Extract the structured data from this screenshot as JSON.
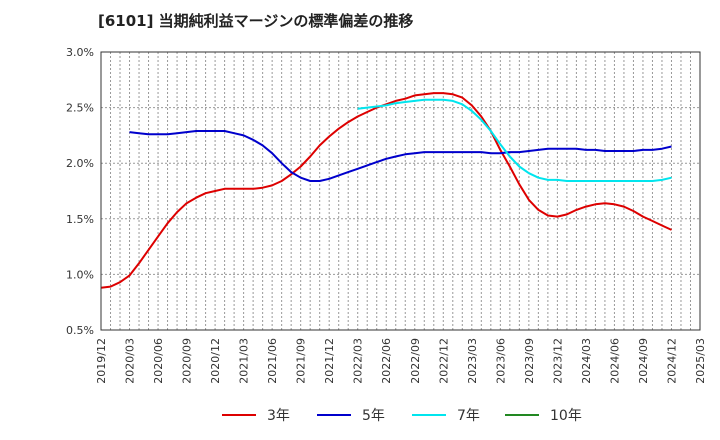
{
  "title": "[6101]  当期純利益マージンの標準偏差の推移",
  "chart_data": {
    "type": "line",
    "title": "[6101]  当期純利益マージンの標準偏差の推移",
    "xlabel": "",
    "ylabel": "",
    "x_ticks": [
      "2019/12",
      "2020/03",
      "2020/06",
      "2020/09",
      "2020/12",
      "2021/03",
      "2021/06",
      "2021/09",
      "2021/12",
      "2022/03",
      "2022/06",
      "2022/09",
      "2022/12",
      "2023/03",
      "2023/06",
      "2023/09",
      "2023/12",
      "2024/03",
      "2024/06",
      "2024/09",
      "2024/12",
      "2025/03"
    ],
    "y_ticks": [
      "0.5%",
      "1.0%",
      "1.5%",
      "2.0%",
      "2.5%",
      "3.0%"
    ],
    "ylim": [
      0.5,
      3.0
    ],
    "grid": true,
    "legend": "bottom",
    "series": [
      {
        "name": "3年",
        "color": "#dd0000",
        "points": [
          [
            "2019/12",
            0.88
          ],
          [
            "2020/01",
            0.89
          ],
          [
            "2020/02",
            0.93
          ],
          [
            "2020/03",
            0.99
          ],
          [
            "2020/04",
            1.1
          ],
          [
            "2020/05",
            1.22
          ],
          [
            "2020/06",
            1.34
          ],
          [
            "2020/07",
            1.46
          ],
          [
            "2020/08",
            1.56
          ],
          [
            "2020/09",
            1.64
          ],
          [
            "2020/10",
            1.69
          ],
          [
            "2020/11",
            1.73
          ],
          [
            "2020/12",
            1.75
          ],
          [
            "2021/01",
            1.77
          ],
          [
            "2021/02",
            1.77
          ],
          [
            "2021/03",
            1.77
          ],
          [
            "2021/04",
            1.77
          ],
          [
            "2021/05",
            1.78
          ],
          [
            "2021/06",
            1.8
          ],
          [
            "2021/07",
            1.84
          ],
          [
            "2021/08",
            1.9
          ],
          [
            "2021/09",
            1.97
          ],
          [
            "2021/10",
            2.06
          ],
          [
            "2021/11",
            2.16
          ],
          [
            "2021/12",
            2.24
          ],
          [
            "2022/01",
            2.31
          ],
          [
            "2022/02",
            2.37
          ],
          [
            "2022/03",
            2.42
          ],
          [
            "2022/04",
            2.46
          ],
          [
            "2022/05",
            2.5
          ],
          [
            "2022/06",
            2.53
          ],
          [
            "2022/07",
            2.56
          ],
          [
            "2022/08",
            2.58
          ],
          [
            "2022/09",
            2.61
          ],
          [
            "2022/10",
            2.62
          ],
          [
            "2022/11",
            2.63
          ],
          [
            "2022/12",
            2.63
          ],
          [
            "2023/01",
            2.62
          ],
          [
            "2023/02",
            2.59
          ],
          [
            "2023/03",
            2.52
          ],
          [
            "2023/04",
            2.42
          ],
          [
            "2023/05",
            2.29
          ],
          [
            "2023/06",
            2.12
          ],
          [
            "2023/07",
            1.97
          ],
          [
            "2023/08",
            1.81
          ],
          [
            "2023/09",
            1.67
          ],
          [
            "2023/10",
            1.58
          ],
          [
            "2023/11",
            1.53
          ],
          [
            "2023/12",
            1.52
          ],
          [
            "2024/01",
            1.54
          ],
          [
            "2024/02",
            1.58
          ],
          [
            "2024/03",
            1.61
          ],
          [
            "2024/04",
            1.63
          ],
          [
            "2024/05",
            1.64
          ],
          [
            "2024/06",
            1.63
          ],
          [
            "2024/07",
            1.61
          ],
          [
            "2024/08",
            1.57
          ],
          [
            "2024/09",
            1.52
          ],
          [
            "2024/10",
            1.48
          ],
          [
            "2024/11",
            1.44
          ],
          [
            "2024/12",
            1.4
          ]
        ]
      },
      {
        "name": "5年",
        "color": "#0000cc",
        "points": [
          [
            "2020/03",
            2.28
          ],
          [
            "2020/04",
            2.27
          ],
          [
            "2020/05",
            2.26
          ],
          [
            "2020/06",
            2.26
          ],
          [
            "2020/07",
            2.26
          ],
          [
            "2020/08",
            2.27
          ],
          [
            "2020/09",
            2.28
          ],
          [
            "2020/10",
            2.29
          ],
          [
            "2020/11",
            2.29
          ],
          [
            "2020/12",
            2.29
          ],
          [
            "2021/01",
            2.29
          ],
          [
            "2021/02",
            2.27
          ],
          [
            "2021/03",
            2.25
          ],
          [
            "2021/04",
            2.21
          ],
          [
            "2021/05",
            2.16
          ],
          [
            "2021/06",
            2.09
          ],
          [
            "2021/07",
            2.0
          ],
          [
            "2021/08",
            1.92
          ],
          [
            "2021/09",
            1.87
          ],
          [
            "2021/10",
            1.84
          ],
          [
            "2021/11",
            1.84
          ],
          [
            "2021/12",
            1.86
          ],
          [
            "2022/01",
            1.89
          ],
          [
            "2022/02",
            1.92
          ],
          [
            "2022/03",
            1.95
          ],
          [
            "2022/04",
            1.98
          ],
          [
            "2022/05",
            2.01
          ],
          [
            "2022/06",
            2.04
          ],
          [
            "2022/07",
            2.06
          ],
          [
            "2022/08",
            2.08
          ],
          [
            "2022/09",
            2.09
          ],
          [
            "2022/10",
            2.1
          ],
          [
            "2022/11",
            2.1
          ],
          [
            "2022/12",
            2.1
          ],
          [
            "2023/01",
            2.1
          ],
          [
            "2023/02",
            2.1
          ],
          [
            "2023/03",
            2.1
          ],
          [
            "2023/04",
            2.1
          ],
          [
            "2023/05",
            2.09
          ],
          [
            "2023/06",
            2.09
          ],
          [
            "2023/07",
            2.1
          ],
          [
            "2023/08",
            2.1
          ],
          [
            "2023/09",
            2.11
          ],
          [
            "2023/10",
            2.12
          ],
          [
            "2023/11",
            2.13
          ],
          [
            "2023/12",
            2.13
          ],
          [
            "2024/01",
            2.13
          ],
          [
            "2024/02",
            2.13
          ],
          [
            "2024/03",
            2.12
          ],
          [
            "2024/04",
            2.12
          ],
          [
            "2024/05",
            2.11
          ],
          [
            "2024/06",
            2.11
          ],
          [
            "2024/07",
            2.11
          ],
          [
            "2024/08",
            2.11
          ],
          [
            "2024/09",
            2.12
          ],
          [
            "2024/10",
            2.12
          ],
          [
            "2024/11",
            2.13
          ],
          [
            "2024/12",
            2.15
          ]
        ]
      },
      {
        "name": "7年",
        "color": "#00e5ee",
        "points": [
          [
            "2022/03",
            2.49
          ],
          [
            "2022/04",
            2.5
          ],
          [
            "2022/05",
            2.51
          ],
          [
            "2022/06",
            2.52
          ],
          [
            "2022/07",
            2.54
          ],
          [
            "2022/08",
            2.55
          ],
          [
            "2022/09",
            2.56
          ],
          [
            "2022/10",
            2.57
          ],
          [
            "2022/11",
            2.57
          ],
          [
            "2022/12",
            2.57
          ],
          [
            "2023/01",
            2.56
          ],
          [
            "2023/02",
            2.53
          ],
          [
            "2023/03",
            2.47
          ],
          [
            "2023/04",
            2.39
          ],
          [
            "2023/05",
            2.29
          ],
          [
            "2023/06",
            2.17
          ],
          [
            "2023/07",
            2.06
          ],
          [
            "2023/08",
            1.97
          ],
          [
            "2023/09",
            1.91
          ],
          [
            "2023/10",
            1.87
          ],
          [
            "2023/11",
            1.85
          ],
          [
            "2023/12",
            1.85
          ],
          [
            "2024/01",
            1.84
          ],
          [
            "2024/02",
            1.84
          ],
          [
            "2024/03",
            1.84
          ],
          [
            "2024/04",
            1.84
          ],
          [
            "2024/05",
            1.84
          ],
          [
            "2024/06",
            1.84
          ],
          [
            "2024/07",
            1.84
          ],
          [
            "2024/08",
            1.84
          ],
          [
            "2024/09",
            1.84
          ],
          [
            "2024/10",
            1.84
          ],
          [
            "2024/11",
            1.85
          ],
          [
            "2024/12",
            1.87
          ]
        ]
      },
      {
        "name": "10年",
        "color": "#228822",
        "points": []
      }
    ]
  }
}
